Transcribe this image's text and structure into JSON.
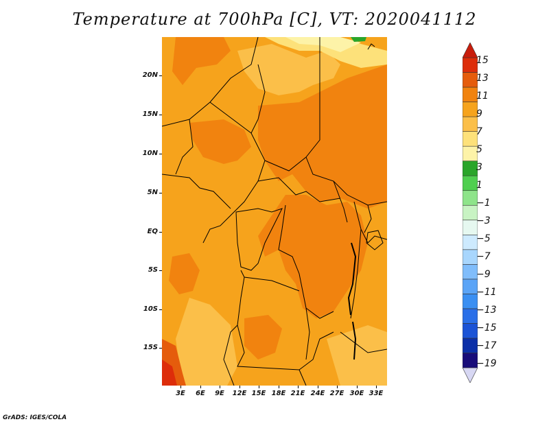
{
  "title": "Temperature at 700hPa [C], VT: 2020041112",
  "credit": "GrADS: IGES/COLA",
  "map": {
    "lat_labels": [
      "20N",
      "15N",
      "10N",
      "5N",
      "EQ",
      "5S",
      "10S",
      "15S"
    ],
    "lon_labels": [
      "3E",
      "6E",
      "9E",
      "12E",
      "15E",
      "18E",
      "21E",
      "24E",
      "27E",
      "30E",
      "33E"
    ]
  },
  "colorbar": {
    "labels": [
      "15",
      "13",
      "11",
      "9",
      "7",
      "5",
      "3",
      "1",
      "−1",
      "−3",
      "−5",
      "−7",
      "−9",
      "−11",
      "−13",
      "−15",
      "−17",
      "−19"
    ],
    "colors": [
      "#d7d7f3",
      "#180c7a",
      "#0b2fa8",
      "#1b53d6",
      "#2a6fe8",
      "#3a8ff2",
      "#5aa4f7",
      "#80bdfb",
      "#a8d6fd",
      "#cdeafe",
      "#e6f8f0",
      "#c8f3c3",
      "#8ee48a",
      "#4fcf4f",
      "#2aa52a",
      "#fdf3a8",
      "#fde17a",
      "#fbbf49",
      "#f6a31c",
      "#f1830f",
      "#e55c0c",
      "#dd2d0a",
      "#c81d0c"
    ]
  }
}
